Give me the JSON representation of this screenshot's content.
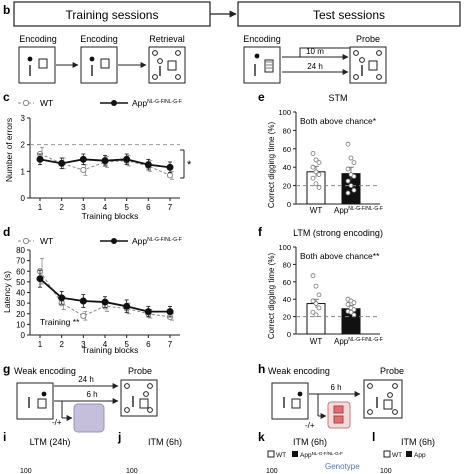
{
  "panels": {
    "b": "b",
    "c": "c",
    "d": "d",
    "e": "e",
    "f": "f",
    "g": "g",
    "h": "h",
    "i": "i",
    "j": "j",
    "k": "k",
    "l": "l"
  },
  "panel_b": {
    "training_header": "Training sessions",
    "test_header": "Test sessions",
    "training_steps": [
      "Encoding",
      "Encoding",
      "Retrieval"
    ],
    "test_encoding": "Encoding",
    "probe": "Probe",
    "delay_short": "10 m",
    "delay_long": "24 h"
  },
  "panel_c": {
    "legend_wt": "WT",
    "legend_app": "App",
    "legend_app_sup": "NL-G-F/NL-G-F",
    "ylabel": "Number of errors",
    "xlabel": "Training blocks",
    "significance": "*"
  },
  "panel_d": {
    "legend_wt": "WT",
    "legend_app": "App",
    "legend_app_sup": "NL-G-F/NL-G-F",
    "ylabel": "Latency (s)",
    "xlabel": "Training blocks",
    "annotation": "Training **"
  },
  "panel_e": {
    "title": "STM",
    "annotation": "Both above chance*",
    "ylabel": "Correct digging time (%)",
    "cat_wt": "WT",
    "cat_app": "App",
    "cat_app_sup": "NL-G-F/NL-G-F"
  },
  "panel_f": {
    "title": "LTM (strong encoding)",
    "annotation": "Both above chance**",
    "ylabel": "Correct digging time (%)",
    "cat_wt": "WT",
    "cat_app": "App",
    "cat_app_sup": "NL-G-F/NL-G-F"
  },
  "panel_g": {
    "weak_encoding": "Weak encoding",
    "delay_long": "24 h",
    "delay_short": "6 h",
    "drug": "-/+",
    "probe": "Probe"
  },
  "panel_h": {
    "weak_encoding": "Weak encoding",
    "delay": "6 h",
    "drug": "-/+",
    "probe": "Probe"
  },
  "panel_i": {
    "title": "LTM (24h)",
    "ytop": "100"
  },
  "panel_j": {
    "title": "ITM (6h)",
    "ytop": "100"
  },
  "panel_k": {
    "title": "ITM (6h)",
    "legend_wt": "WT",
    "legend_app": "App",
    "legend_app_sup": "NL-G-F/NL-G-F",
    "ytop": "100",
    "extra": "Genotype"
  },
  "panel_l": {
    "title": "ITM (6h)",
    "legend_wt": "WT",
    "legend_app": "App",
    "ytop": "100"
  },
  "chart_data": [
    {
      "type": "line",
      "id": "c",
      "x": [
        1,
        2,
        3,
        4,
        5,
        6,
        7
      ],
      "xticks": [
        "1",
        "2",
        "3",
        "4",
        "5",
        "6",
        "7"
      ],
      "yticks": [
        "0",
        "1",
        "2",
        "3"
      ],
      "ylim": [
        0,
        3
      ],
      "reference_line": 2,
      "series": [
        {
          "name": "WT",
          "values": [
            1.65,
            1.3,
            1.05,
            1.35,
            1.4,
            1.2,
            0.85
          ],
          "err": [
            0.25,
            0.2,
            0.2,
            0.2,
            0.2,
            0.2,
            0.15
          ]
        },
        {
          "name": "App NL-G-F/NL-G-F",
          "values": [
            1.45,
            1.3,
            1.45,
            1.4,
            1.45,
            1.25,
            1.15
          ],
          "err": [
            0.2,
            0.2,
            0.2,
            0.2,
            0.2,
            0.2,
            0.2
          ]
        }
      ]
    },
    {
      "type": "line",
      "id": "d",
      "x": [
        1,
        2,
        3,
        4,
        5,
        6,
        7
      ],
      "xticks": [
        "1",
        "2",
        "3",
        "4",
        "5",
        "6",
        "7"
      ],
      "yticks": [
        "0",
        "10",
        "20",
        "30",
        "40",
        "50",
        "60",
        "70",
        "80"
      ],
      "ylim": [
        0,
        80
      ],
      "series": [
        {
          "name": "WT",
          "values": [
            60,
            30,
            18,
            27,
            25,
            20,
            17
          ],
          "err": [
            12,
            6,
            4,
            5,
            5,
            4,
            3
          ]
        },
        {
          "name": "App NL-G-F/NL-G-F",
          "values": [
            53,
            35,
            32,
            31,
            27,
            22,
            22
          ],
          "err": [
            8,
            6,
            6,
            5,
            6,
            5,
            5
          ]
        }
      ]
    },
    {
      "type": "bar",
      "id": "e",
      "categories": [
        "WT",
        "App NL-G-F/NL-G-F"
      ],
      "values": [
        35,
        33
      ],
      "err": [
        6,
        7
      ],
      "yticks": [
        "0",
        "20",
        "40",
        "60",
        "80",
        "100"
      ],
      "ylim": [
        0,
        100
      ],
      "chance": 20,
      "points": [
        [
          55,
          48,
          45,
          40,
          35,
          32,
          28,
          22,
          18
        ],
        [
          65,
          50,
          45,
          38,
          32,
          30,
          25,
          20,
          15,
          12
        ]
      ]
    },
    {
      "type": "bar",
      "id": "f",
      "categories": [
        "WT",
        "App NL-G-F/NL-G-F"
      ],
      "values": [
        35,
        29
      ],
      "err": [
        5,
        4
      ],
      "yticks": [
        "0",
        "20",
        "40",
        "60",
        "80",
        "100"
      ],
      "ylim": [
        0,
        100
      ],
      "chance": 20,
      "points": [
        [
          67,
          55,
          45,
          38,
          35,
          30,
          25,
          22
        ],
        [
          40,
          38,
          36,
          34,
          30,
          28,
          26,
          25,
          22
        ]
      ]
    }
  ]
}
